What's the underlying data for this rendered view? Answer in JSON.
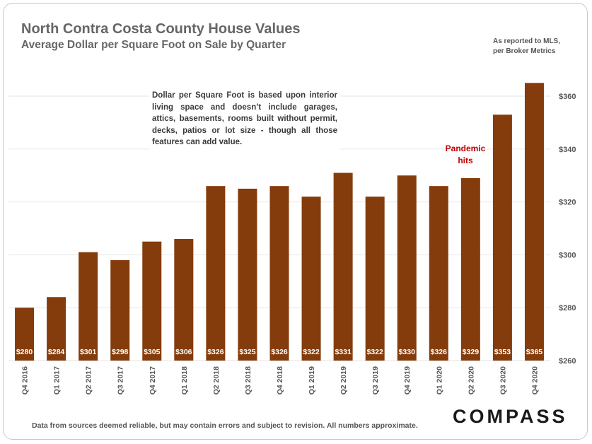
{
  "header": {
    "title": "North Contra Costa County House Values",
    "subtitle": "Average Dollar per Square Foot on Sale by Quarter",
    "source_note": "As reported to MLS, per Broker Metrics"
  },
  "annotations": {
    "note": "Dollar per Square Foot is based upon interior living space and doesn’t include garages, attics, basements, rooms built without permit, decks, patios or lot size - though all those features can add value.",
    "pandemic": "Pandemic hits"
  },
  "footer": {
    "disclaimer": "Data from sources deemed reliable, but may contain errors and subject to revision. All numbers approximate.",
    "brand": "COMPASS"
  },
  "colors": {
    "bar": "#843c0c",
    "grid": "#e6e6e6",
    "pandemic": "#c00000"
  },
  "chart_data": {
    "type": "bar",
    "title": "North Contra Costa County House Values",
    "subtitle": "Average Dollar per Square Foot on Sale by Quarter",
    "categories": [
      "Q4 2016",
      "Q1 2017",
      "Q2 2017",
      "Q3 2017",
      "Q4 2017",
      "Q1 2018",
      "Q2 2018",
      "Q3 2018",
      "Q4 2018",
      "Q1 2019",
      "Q2 2019",
      "Q3 2019",
      "Q4 2019",
      "Q1 2020",
      "Q2 2020",
      "Q3 2020",
      "Q4 2020"
    ],
    "values": [
      280,
      284,
      301,
      298,
      305,
      306,
      326,
      325,
      326,
      322,
      331,
      322,
      330,
      326,
      329,
      353,
      365
    ],
    "value_labels": [
      "$280",
      "$284",
      "$301",
      "$298",
      "$305",
      "$306",
      "$326",
      "$325",
      "$326",
      "$322",
      "$331",
      "$322",
      "$330",
      "$326",
      "$329",
      "$353",
      "$365"
    ],
    "ylim": [
      260,
      370
    ],
    "yticks": [
      260,
      280,
      300,
      320,
      340,
      360
    ],
    "ytick_labels": [
      "$260",
      "$280",
      "$300",
      "$320",
      "$340",
      "$360"
    ],
    "y_axis_side": "right",
    "grid": true,
    "legend": "none"
  }
}
